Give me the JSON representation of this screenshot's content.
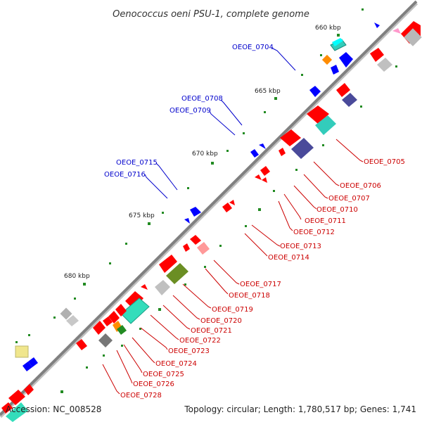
{
  "title": "Oenococcus oeni PSU-1, complete genome",
  "accession": "Accession: NC_008528",
  "topology": "Topology: circular; Length: 1,780,517 bp; Genes: 1,741",
  "ticks": [
    "660 kbp",
    "665 kbp",
    "670 kbp",
    "675 kbp",
    "680 kbp"
  ],
  "labels_forward": [
    "OEOE_0704",
    "OEOE_0708",
    "OEOE_0709",
    "OEOE_0715",
    "OEOE_0716"
  ],
  "labels_reverse": [
    "OEOE_0705",
    "OEOE_0706",
    "OEOE_0707",
    "OEOE_0710",
    "OEOE_0711",
    "OEOE_0712",
    "OEOE_0713",
    "OEOE_0714",
    "OEOE_0717",
    "OEOE_0718",
    "OEOE_0719",
    "OEOE_0720",
    "OEOE_0721",
    "OEOE_0722",
    "OEOE_0723",
    "OEOE_0724",
    "OEOE_0725",
    "OEOE_0726",
    "OEOE_0728"
  ],
  "colors": {
    "forward_label": "#0000cc",
    "reverse_label": "#cc0000",
    "backbone": "#808080",
    "cds_red": "#ff0000",
    "cds_blue": "#0000ff",
    "gray": "#b0b0b0",
    "navy": "#4a4a9a",
    "cyan": "#33ccbb",
    "olive": "#6b8e23",
    "orange": "#ff8c00",
    "green_tick": "#228b22"
  }
}
